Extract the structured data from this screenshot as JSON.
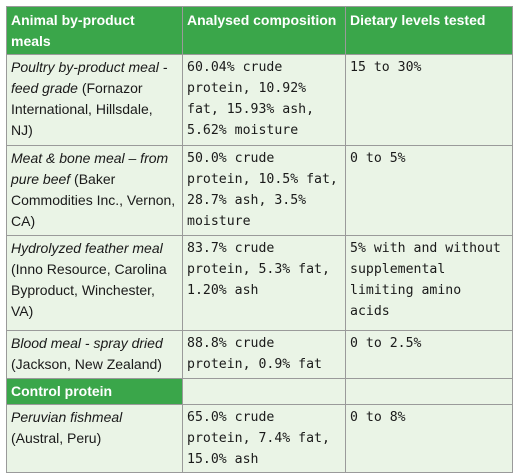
{
  "header": {
    "col1": "Animal by-product meals",
    "col2": "Analysed composition",
    "col3": "Dietary levels tested"
  },
  "rows": [
    {
      "name": "Poultry by-product meal - feed grade",
      "source": " (Fornazor International, Hillsdale, NJ)",
      "composition": "60.04% crude protein, 10.92% fat, 15.93% ash, 5.62% moisture",
      "levels": "15 to 30%"
    },
    {
      "name": "Meat & bone meal – from pure beef",
      "source": " (Baker Commodities Inc., Vernon, CA)",
      "composition": "50.0% crude protein, 10.5% fat, 28.7% ash, 3.5% moisture",
      "levels": "0 to 5%"
    },
    {
      "name": "Hydrolyzed feather meal",
      "source": " (Inno Resource, Carolina Byproduct, Winchester, VA)",
      "composition": "83.7% crude protein, 5.3% fat, 1.20% ash",
      "levels": "5% with and without supplemental limiting amino acids"
    },
    {
      "name": "Blood meal - spray dried",
      "source": " (Jackson, New Zealand)",
      "composition": "88.8% crude protein, 0.9% fat",
      "levels": "0 to 2.5%"
    }
  ],
  "section": {
    "label": "Control protein"
  },
  "control": {
    "name": "Peruvian fishmeal",
    "source": " (Austral, Peru)",
    "composition": "65.0% crude protein, 7.4% fat, 15.0% ash",
    "levels": "0 to 8%"
  },
  "colors": {
    "header_bg": "#3aa64a",
    "cell_bg": "#eaf4e6",
    "border": "#9a9a9a"
  }
}
